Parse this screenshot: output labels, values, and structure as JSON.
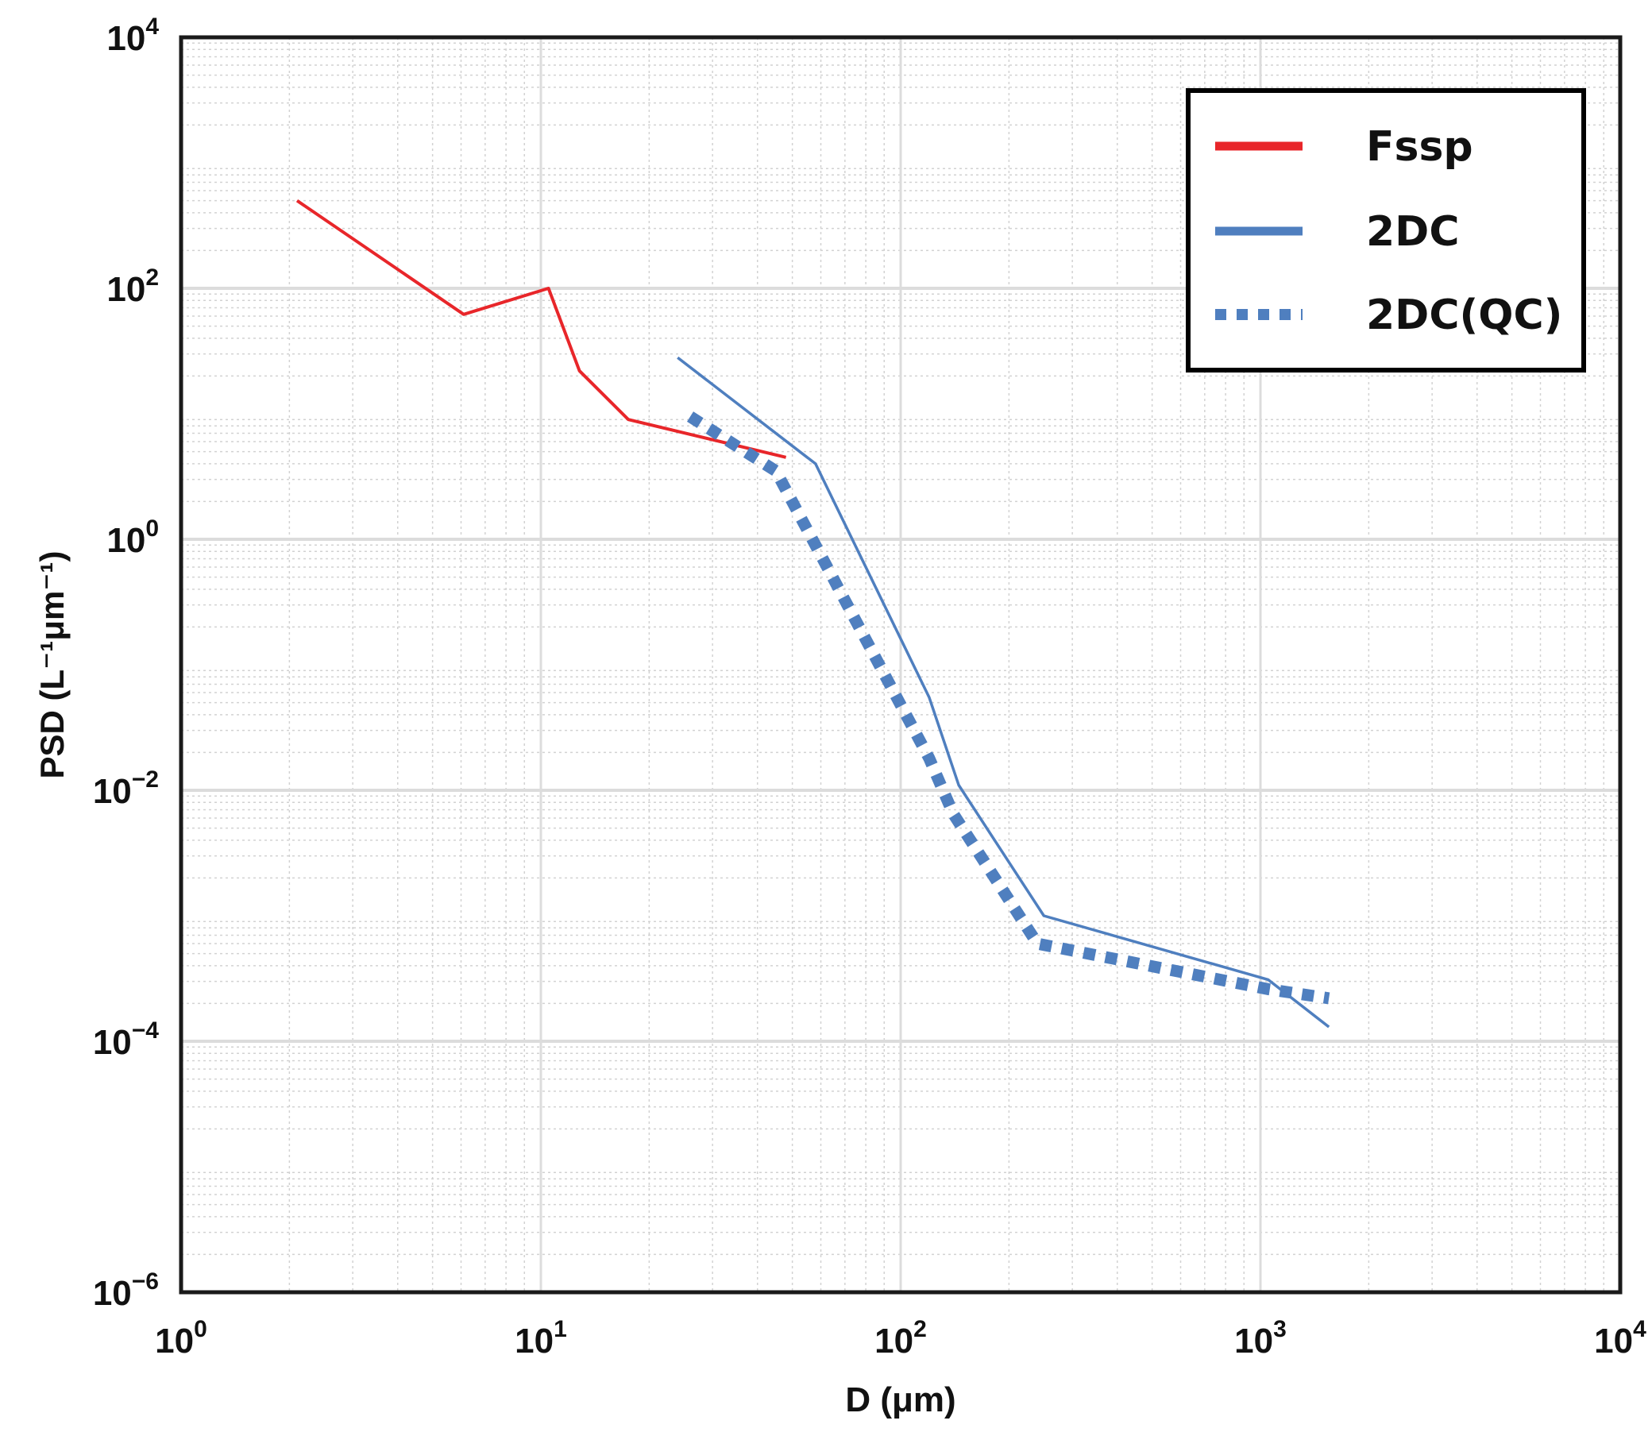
{
  "chart_data": {
    "type": "line",
    "title": "",
    "xlabel": "D (μm)",
    "ylabel": "PSD (L⁻¹μm⁻¹)",
    "xscale": "log",
    "yscale": "log",
    "xlim": [
      1,
      10000
    ],
    "ylim": [
      1e-06,
      10000
    ],
    "grid": true,
    "legend_position": "top-right",
    "x_ticks": [
      {
        "value": 1,
        "base": "10",
        "exp": "0"
      },
      {
        "value": 10,
        "base": "10",
        "exp": "1"
      },
      {
        "value": 100,
        "base": "10",
        "exp": "2"
      },
      {
        "value": 1000,
        "base": "10",
        "exp": "3"
      },
      {
        "value": 10000,
        "base": "10",
        "exp": "4"
      }
    ],
    "y_ticks": [
      {
        "value": 1e-06,
        "base": "10",
        "exp": "−6"
      },
      {
        "value": 0.0001,
        "base": "10",
        "exp": "−4"
      },
      {
        "value": 0.01,
        "base": "10",
        "exp": "−2"
      },
      {
        "value": 1,
        "base": "10",
        "exp": "0"
      },
      {
        "value": 100,
        "base": "10",
        "exp": "2"
      },
      {
        "value": 10000,
        "base": "10",
        "exp": "4"
      }
    ],
    "series": [
      {
        "name": "Fssp",
        "color": "#e8262a",
        "style": "solid",
        "x": [
          2.1,
          6.1,
          10.5,
          12.8,
          17.5,
          48
        ],
        "y": [
          500,
          62,
          100,
          22,
          9,
          4.5
        ]
      },
      {
        "name": "2DC",
        "color": "#4f7fbf",
        "style": "solid",
        "x": [
          24,
          58,
          120,
          145,
          250,
          1050,
          1550
        ],
        "y": [
          28,
          4,
          0.055,
          0.011,
          0.001,
          0.00031,
          0.00013
        ]
      },
      {
        "name": "2DC(QC)",
        "color": "#4f7fbf",
        "style": "dotted",
        "x": [
          26,
          45,
          120,
          140,
          240,
          1050,
          1550
        ],
        "y": [
          9.5,
          3.5,
          0.018,
          0.0065,
          0.0006,
          0.00026,
          0.00022
        ]
      }
    ]
  }
}
